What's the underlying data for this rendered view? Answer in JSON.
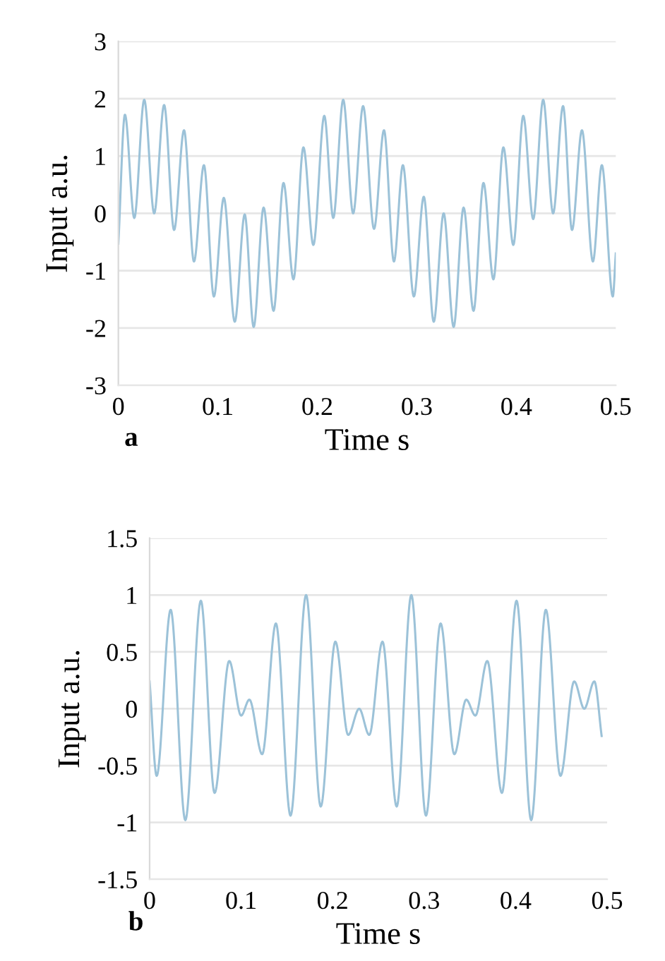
{
  "chart_data": [
    {
      "type": "line",
      "xlabel": "Time s",
      "ylabel": "Input a.u.",
      "annotations": [
        "a"
      ],
      "grid": "y",
      "xlim": [
        0,
        0.5
      ],
      "ylim": [
        -3,
        3
      ],
      "xticks": [
        0,
        0.1,
        0.2,
        0.3,
        0.4,
        0.5
      ],
      "yticks": [
        -3,
        -2,
        -1,
        0,
        1,
        2,
        3
      ],
      "series": [
        {
          "color": "#9cc2d8",
          "x": [
            0,
            0.0066,
            0.016,
            0.026,
            0.036,
            0.046,
            0.056,
            0.066,
            0.076,
            0.086,
            0.096,
            0.106,
            0.117,
            0.127,
            0.136,
            0.146,
            0.156,
            0.166,
            0.176,
            0.186,
            0.196,
            0.207,
            0.216,
            0.226,
            0.236,
            0.246,
            0.257,
            0.267,
            0.277,
            0.286,
            0.297,
            0.307,
            0.317,
            0.327,
            0.337,
            0.347,
            0.357,
            0.367,
            0.377,
            0.387,
            0.397,
            0.407,
            0.417,
            0.427,
            0.437,
            0.447,
            0.456,
            0.466,
            0.477,
            0.486,
            0.497,
            0.5
          ],
          "values": [
            -0.53,
            1.72,
            -0.08,
            1.98,
            0.0,
            1.89,
            -0.29,
            1.45,
            -0.84,
            0.84,
            -1.45,
            0.27,
            -1.89,
            -0.02,
            -1.98,
            0.1,
            -1.7,
            0.53,
            -1.15,
            1.15,
            -0.55,
            1.7,
            -0.08,
            1.98,
            0.0,
            1.87,
            -0.27,
            1.45,
            -0.84,
            0.84,
            -1.45,
            0.29,
            -1.89,
            0.0,
            -1.98,
            0.1,
            -1.7,
            0.53,
            -1.15,
            1.15,
            -0.55,
            1.7,
            -0.1,
            1.98,
            0.0,
            1.87,
            -0.29,
            1.45,
            -0.84,
            0.84,
            -1.45,
            -0.7
          ]
        }
      ]
    },
    {
      "type": "line",
      "xlabel": "Time s",
      "ylabel": "Input a.u.",
      "annotations": [
        "b"
      ],
      "grid": "y",
      "xlim": [
        0,
        0.5
      ],
      "ylim": [
        -1.5,
        1.5
      ],
      "xticks": [
        0,
        0.1,
        0.2,
        0.3,
        0.4,
        0.5
      ],
      "yticks": [
        -1.5,
        -1,
        -0.5,
        0,
        0.5,
        1,
        1.5
      ],
      "series": [
        {
          "color": "#9cc2d8",
          "x": [
            0,
            0.0077,
            0.023,
            0.039,
            0.056,
            0.071,
            0.087,
            0.1,
            0.109,
            0.123,
            0.138,
            0.154,
            0.171,
            0.187,
            0.203,
            0.217,
            0.229,
            0.24,
            0.2545,
            0.27,
            0.286,
            0.302,
            0.318,
            0.333,
            0.346,
            0.356,
            0.369,
            0.385,
            0.401,
            0.417,
            0.433,
            0.449,
            0.464,
            0.475,
            0.486,
            0.494
          ],
          "values": [
            0.24,
            -0.59,
            0.87,
            -0.98,
            0.95,
            -0.74,
            0.42,
            -0.06,
            0.08,
            -0.4,
            0.75,
            -0.94,
            1.0,
            -0.86,
            0.59,
            -0.23,
            0.0,
            -0.23,
            0.59,
            -0.86,
            1.0,
            -0.94,
            0.75,
            -0.4,
            0.08,
            -0.06,
            0.42,
            -0.74,
            0.95,
            -0.98,
            0.87,
            -0.59,
            0.24,
            0.0,
            0.24,
            -0.24
          ]
        }
      ]
    }
  ]
}
